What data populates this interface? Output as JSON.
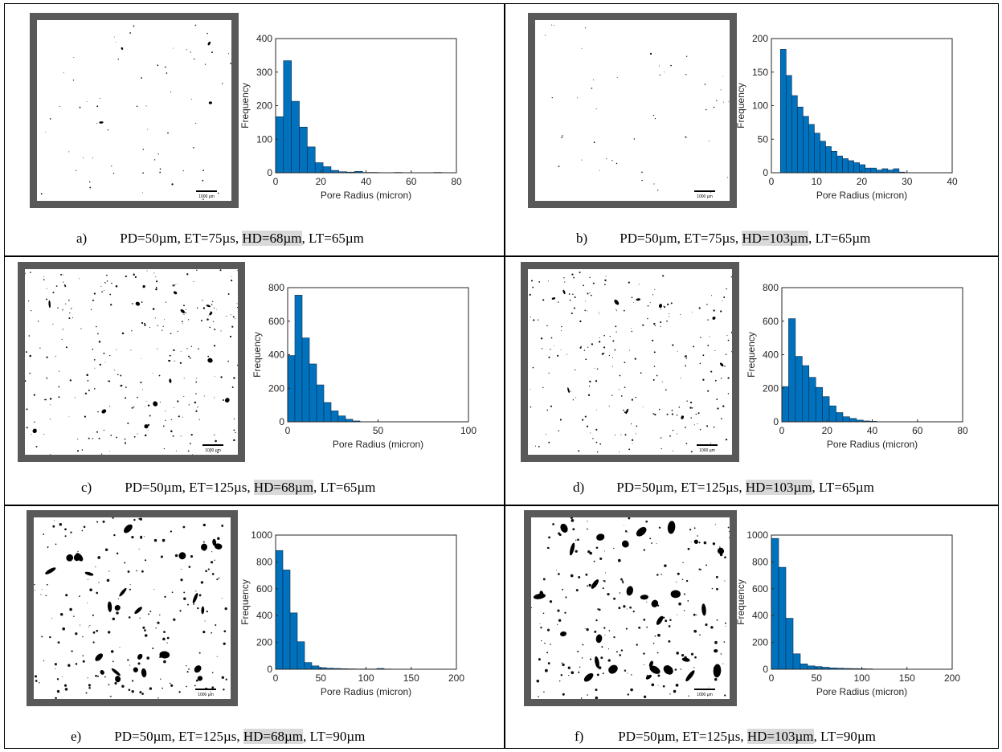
{
  "panels": [
    {
      "id": "a",
      "caption": {
        "label": "a)",
        "pd": "PD=50µm,",
        "et": "ET=75µs,",
        "hd": "HD=68µm",
        "lt": ", LT=65µm"
      },
      "scale_bar": "1000 µm",
      "chart_data": {
        "type": "bar",
        "xlabel": "Pore Radius (micron)",
        "ylabel": "Frequency",
        "xlim": [
          0,
          80
        ],
        "ylim": [
          0,
          400
        ],
        "xticks": [
          0,
          20,
          40,
          60,
          80
        ],
        "yticks": [
          0,
          100,
          200,
          300,
          400
        ],
        "bin_width": 3.5,
        "x_start": 0,
        "values": [
          167,
          334,
          213,
          136,
          77,
          30,
          18,
          7,
          3,
          2,
          4,
          1,
          1,
          0,
          0,
          1,
          0,
          0,
          0,
          0,
          1
        ]
      }
    },
    {
      "id": "b",
      "caption": {
        "label": "b)",
        "pd": "PD=50µm,",
        "et": "ET=75µs,",
        "hd": "HD=103µm",
        "lt": ", LT=65µm"
      },
      "scale_bar": "1000 µm",
      "chart_data": {
        "type": "bar",
        "xlabel": "Pore Radius (micron)",
        "ylabel": "Frequency",
        "xlim": [
          0,
          40
        ],
        "ylim": [
          0,
          200
        ],
        "xticks": [
          0,
          10,
          20,
          30,
          40
        ],
        "yticks": [
          0,
          50,
          100,
          150,
          200
        ],
        "bin_width": 1.25,
        "x_start": 2,
        "values": [
          184,
          145,
          115,
          98,
          84,
          72,
          59,
          47,
          39,
          32,
          25,
          21,
          18,
          15,
          12,
          7,
          7,
          4,
          6,
          4,
          6,
          1
        ]
      }
    },
    {
      "id": "c",
      "caption": {
        "label": "c)",
        "pd": "PD=50µm,",
        "et": "ET=125µs,",
        "hd": "HD=68µm",
        "lt": ", LT=65µm"
      },
      "scale_bar": "1000 µm",
      "chart_data": {
        "type": "bar",
        "xlabel": "Pore Radius (micron)",
        "ylabel": "Frequency",
        "xlim": [
          0,
          100
        ],
        "ylim": [
          0,
          800
        ],
        "xticks": [
          0,
          50,
          100
        ],
        "yticks": [
          0,
          200,
          400,
          600,
          800
        ],
        "bin_width": 4,
        "x_start": 0,
        "values": [
          395,
          755,
          500,
          345,
          220,
          115,
          65,
          35,
          15,
          5
        ]
      }
    },
    {
      "id": "d",
      "caption": {
        "label": "d)",
        "pd": "PD=50µm,",
        "et": "ET=125µs,",
        "hd": "HD=103µm",
        "lt": ", LT=65µm"
      },
      "scale_bar": "1000 µm",
      "chart_data": {
        "type": "bar",
        "xlabel": "Pore Radius (micron)",
        "ylabel": "Frequency",
        "xlim": [
          0,
          80
        ],
        "ylim": [
          0,
          800
        ],
        "xticks": [
          0,
          20,
          40,
          60,
          80
        ],
        "yticks": [
          0,
          200,
          400,
          600,
          800
        ],
        "bin_width": 3,
        "x_start": 0,
        "values": [
          210,
          615,
          390,
          335,
          265,
          205,
          150,
          95,
          55,
          30,
          20,
          10,
          5,
          3
        ]
      }
    },
    {
      "id": "e",
      "caption": {
        "label": "e)",
        "pd": "PD=50µm,",
        "et": "ET=125µs,",
        "hd": "HD=68µm",
        "lt": ", LT=90µm"
      },
      "scale_bar": "1000 µm",
      "chart_data": {
        "type": "bar",
        "xlabel": "Pore Radius (micron)",
        "ylabel": "Frequency",
        "xlim": [
          0,
          200
        ],
        "ylim": [
          0,
          1000
        ],
        "xticks": [
          0,
          50,
          100,
          150,
          200
        ],
        "yticks": [
          0,
          200,
          400,
          600,
          800,
          1000
        ],
        "bin_width": 8,
        "x_start": 0,
        "values": [
          885,
          740,
          420,
          205,
          50,
          25,
          12,
          8,
          6,
          4,
          3,
          2,
          2,
          2,
          6,
          2
        ]
      }
    },
    {
      "id": "f",
      "caption": {
        "label": "f)",
        "pd": "PD=50µm,",
        "et": "ET=125µs,",
        "hd": "HD=103µm",
        "lt": ", LT=90µm"
      },
      "scale_bar": "1000 µm",
      "chart_data": {
        "type": "bar",
        "xlabel": "Pore Radius (micron)",
        "ylabel": "Frequency",
        "xlim": [
          0,
          200
        ],
        "ylim": [
          0,
          1000
        ],
        "xticks": [
          0,
          50,
          100,
          150,
          200
        ],
        "yticks": [
          0,
          200,
          400,
          600,
          800,
          1000
        ],
        "bin_width": 8,
        "x_start": 0,
        "values": [
          975,
          760,
          380,
          115,
          40,
          25,
          20,
          15,
          10,
          8,
          6,
          5,
          4,
          3
        ]
      }
    }
  ]
}
